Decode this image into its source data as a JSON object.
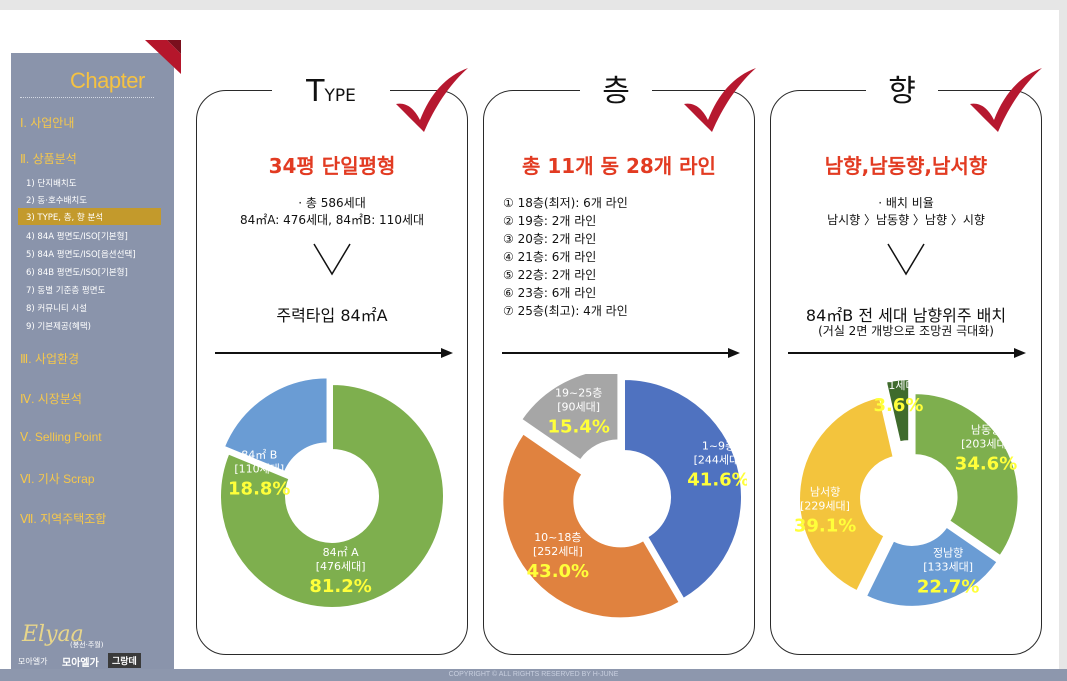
{
  "sidebar": {
    "chapter_title": "Chapter",
    "menu": [
      {
        "label": "Ⅰ. 사업안내"
      },
      {
        "label": "Ⅱ. 상품분석"
      },
      {
        "label": "Ⅲ. 사업환경"
      },
      {
        "label": "Ⅳ. 시장분석"
      },
      {
        "label": "Ⅴ. Selling Point"
      },
      {
        "label": "Ⅵ. 기사 Scrap"
      },
      {
        "label": "Ⅶ. 지역주택조합"
      }
    ],
    "submenu": [
      {
        "label": "1) 단지배치도"
      },
      {
        "label": "2) 동·호수배치도"
      },
      {
        "label": "3) TYPE, 층, 향 분석",
        "active": true
      },
      {
        "label": "4) 84A 평면도/ISO[기본형]"
      },
      {
        "label": "5) 84A 평면도/ISO[옵션선택]"
      },
      {
        "label": "6) 84B 평면도/ISO[기본형]"
      },
      {
        "label": "7) 동별 기준층 평면도"
      },
      {
        "label": "8) 커뮤니티 시설"
      },
      {
        "label": "9) 기본제공(혜택)"
      }
    ],
    "logo": {
      "script": "Elyaa",
      "small": "(봉선·주월)",
      "left": "모아엘가",
      "name": "모아엘가",
      "badge": "그랑데"
    }
  },
  "panels": {
    "type": {
      "title_big": "T",
      "title_small": "YPE",
      "headline": "34평 단일평형",
      "line1": "· 총 586세대",
      "line2": "84㎡A: 476세대, 84㎡B: 110세대",
      "summary": "주력타입 84㎡A"
    },
    "floor": {
      "title": "층",
      "headline": "총 11개 동 28개 라인",
      "lines": [
        "① 18층(최저): 6개 라인",
        "② 19층: 2개 라인",
        "③ 20층: 2개 라인",
        "④ 21층: 6개 라인",
        "⑤ 22층: 2개 라인",
        "⑥ 23층: 6개 라인",
        "⑦ 25층(최고): 4개 라인"
      ]
    },
    "direction": {
      "title": "향",
      "headline": "남향,남동향,남서향",
      "line1": "· 배치 비율",
      "line2": "남시향 〉남동향 〉남향 〉시향",
      "summary": "84㎡B 전 세대 남향위주 배치",
      "summary_sub": "(거실 2면 개방으로 조망권 극대화)"
    }
  },
  "chart_data": [
    {
      "type": "pie",
      "title": "",
      "categories": [
        "84㎡ A",
        "84㎡ B"
      ],
      "units": [
        "[476세대]",
        "[110세대]"
      ],
      "values": [
        81.2,
        18.8
      ],
      "labels": [
        "81.2%",
        "18.8%"
      ],
      "colors": [
        "#7eaf4e",
        "#6a9cd4"
      ]
    },
    {
      "type": "pie",
      "title": "",
      "categories": [
        "1~9층",
        "10~18층",
        "19~25층"
      ],
      "units": [
        "[244세대]",
        "[252세대]",
        "[90세대]"
      ],
      "values": [
        41.6,
        43.0,
        15.4
      ],
      "labels": [
        "41.6%",
        "43.0%",
        "15.4%"
      ],
      "colors": [
        "#4f72c0",
        "#e0823f",
        "#a6a6a6"
      ]
    },
    {
      "type": "pie",
      "title": "",
      "categories": [
        "남동향",
        "정남향",
        "남서향",
        "서향"
      ],
      "units": [
        "[203세대]",
        "[133세대]",
        "[229세대]",
        "[21세대]"
      ],
      "values": [
        34.6,
        22.7,
        39.1,
        3.6
      ],
      "labels": [
        "34.6%",
        "22.7%",
        "39.1%",
        "3.6%"
      ],
      "colors": [
        "#7eaf4e",
        "#6a9cd4",
        "#f3c43d",
        "#3f6b2c"
      ]
    }
  ],
  "footer": {
    "copyright": "COPYRIGHT © ALL RIGHTS RESERVED BY H-JUNE"
  }
}
